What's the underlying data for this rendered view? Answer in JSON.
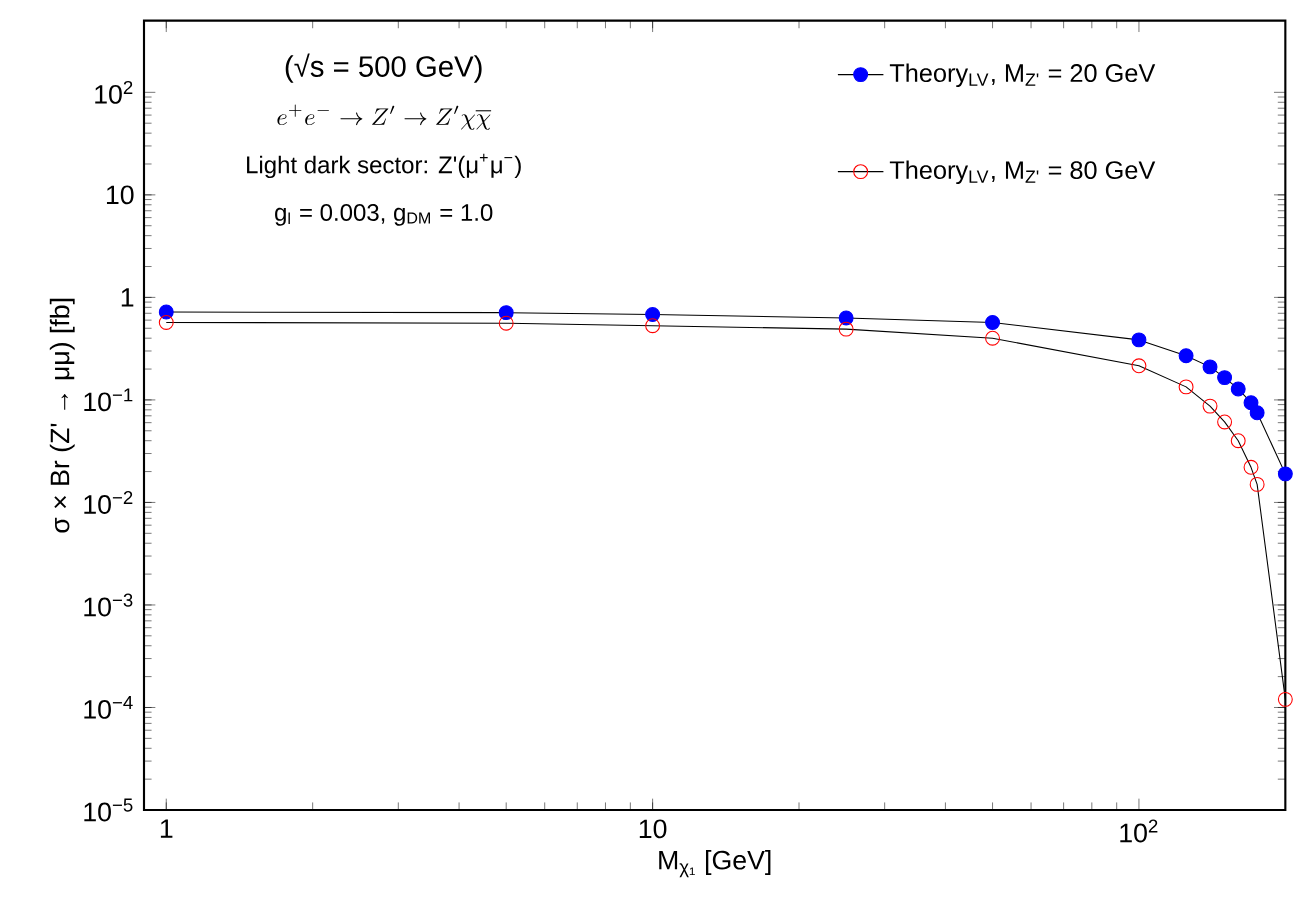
{
  "chart_data": {
    "type": "line",
    "xlabel": "M$_{χ₁}$ [GeV]",
    "ylabel": "σ × Br (Z' → μμ) [fb]",
    "annotations": [
      "(√s = 500 GeV)",
      "e^+e^- \\to Z' \\to Z'\\chi\\overline{\\chi}",
      "Light dark sector: Z'(μ$^{+}$μ$^{−}$)",
      "g$_{l}$ = 0.003, g$_{DM}$ = 1.0"
    ],
    "log": "xy",
    "xlim": [
      0.9,
      200
    ],
    "ylim": [
      1e-05,
      500
    ],
    "xticks": [
      1,
      10,
      {
        "value": 100,
        "label": "10$^{2}$"
      }
    ],
    "yticks": [
      {
        "value": 1e-05,
        "label": "10$^{−5}$"
      },
      {
        "value": 0.0001,
        "label": "10$^{−4}$"
      },
      {
        "value": 0.001,
        "label": "10$^{−3}$"
      },
      {
        "value": 0.01,
        "label": "10$^{−2}$"
      },
      {
        "value": 0.1,
        "label": "10$^{−1}$"
      },
      1,
      10,
      {
        "value": 100,
        "label": "10$^{2}$"
      }
    ],
    "legend": "top right",
    "grid": false,
    "series": [
      {
        "name": "Theory$_{LV}$, M$_{Z'}$ = 20 GeV",
        "color": "#0000ff",
        "marker": "circle",
        "x": [
          1,
          5,
          10,
          25,
          50,
          100,
          125,
          140,
          150,
          160,
          170,
          175,
          200
        ],
        "values": [
          0.72,
          0.71,
          0.68,
          0.63,
          0.57,
          0.385,
          0.27,
          0.21,
          0.165,
          0.128,
          0.094,
          0.075,
          0.019
        ]
      },
      {
        "name": "Theory$_{LV}$, M$_{Z'}$ = 80 GeV",
        "color": "#ff0000",
        "marker": "open circle",
        "x": [
          1,
          5,
          10,
          25,
          50,
          100,
          125,
          140,
          150,
          160,
          170,
          175,
          200
        ],
        "values": [
          0.57,
          0.56,
          0.53,
          0.49,
          0.4,
          0.215,
          0.134,
          0.087,
          0.061,
          0.04,
          0.022,
          0.015,
          0.00012
        ]
      }
    ]
  }
}
